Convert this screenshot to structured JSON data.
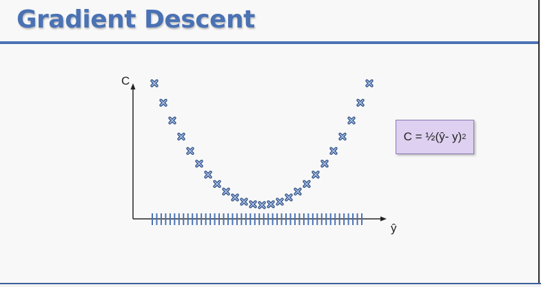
{
  "slide": {
    "title": "Gradient Descent"
  },
  "formula": {
    "text": "C = ½(ŷ- y)",
    "exponent": "2"
  },
  "colors": {
    "accent": "#4a72b4",
    "formula_box": "#ddd0f0",
    "axis": "#222222"
  },
  "chart_data": {
    "type": "scatter",
    "xlabel": "ŷ",
    "ylabel": "C",
    "marker": "x-icon",
    "x_ticks_count": 48,
    "points": [
      {
        "x": -12,
        "y": 144
      },
      {
        "x": -11,
        "y": 121
      },
      {
        "x": -10,
        "y": 100
      },
      {
        "x": -9,
        "y": 81
      },
      {
        "x": -8,
        "y": 64
      },
      {
        "x": -7,
        "y": 49
      },
      {
        "x": -6,
        "y": 36
      },
      {
        "x": -5,
        "y": 25
      },
      {
        "x": -4,
        "y": 16
      },
      {
        "x": -3,
        "y": 9
      },
      {
        "x": -2,
        "y": 4
      },
      {
        "x": -1,
        "y": 1
      },
      {
        "x": 0,
        "y": 0
      },
      {
        "x": 1,
        "y": 1
      },
      {
        "x": 2,
        "y": 4
      },
      {
        "x": 3,
        "y": 9
      },
      {
        "x": 4,
        "y": 16
      },
      {
        "x": 5,
        "y": 25
      },
      {
        "x": 6,
        "y": 36
      },
      {
        "x": 7,
        "y": 49
      },
      {
        "x": 8,
        "y": 64
      },
      {
        "x": 9,
        "y": 81
      },
      {
        "x": 10,
        "y": 100
      },
      {
        "x": 11,
        "y": 121
      },
      {
        "x": 12,
        "y": 144
      }
    ]
  }
}
